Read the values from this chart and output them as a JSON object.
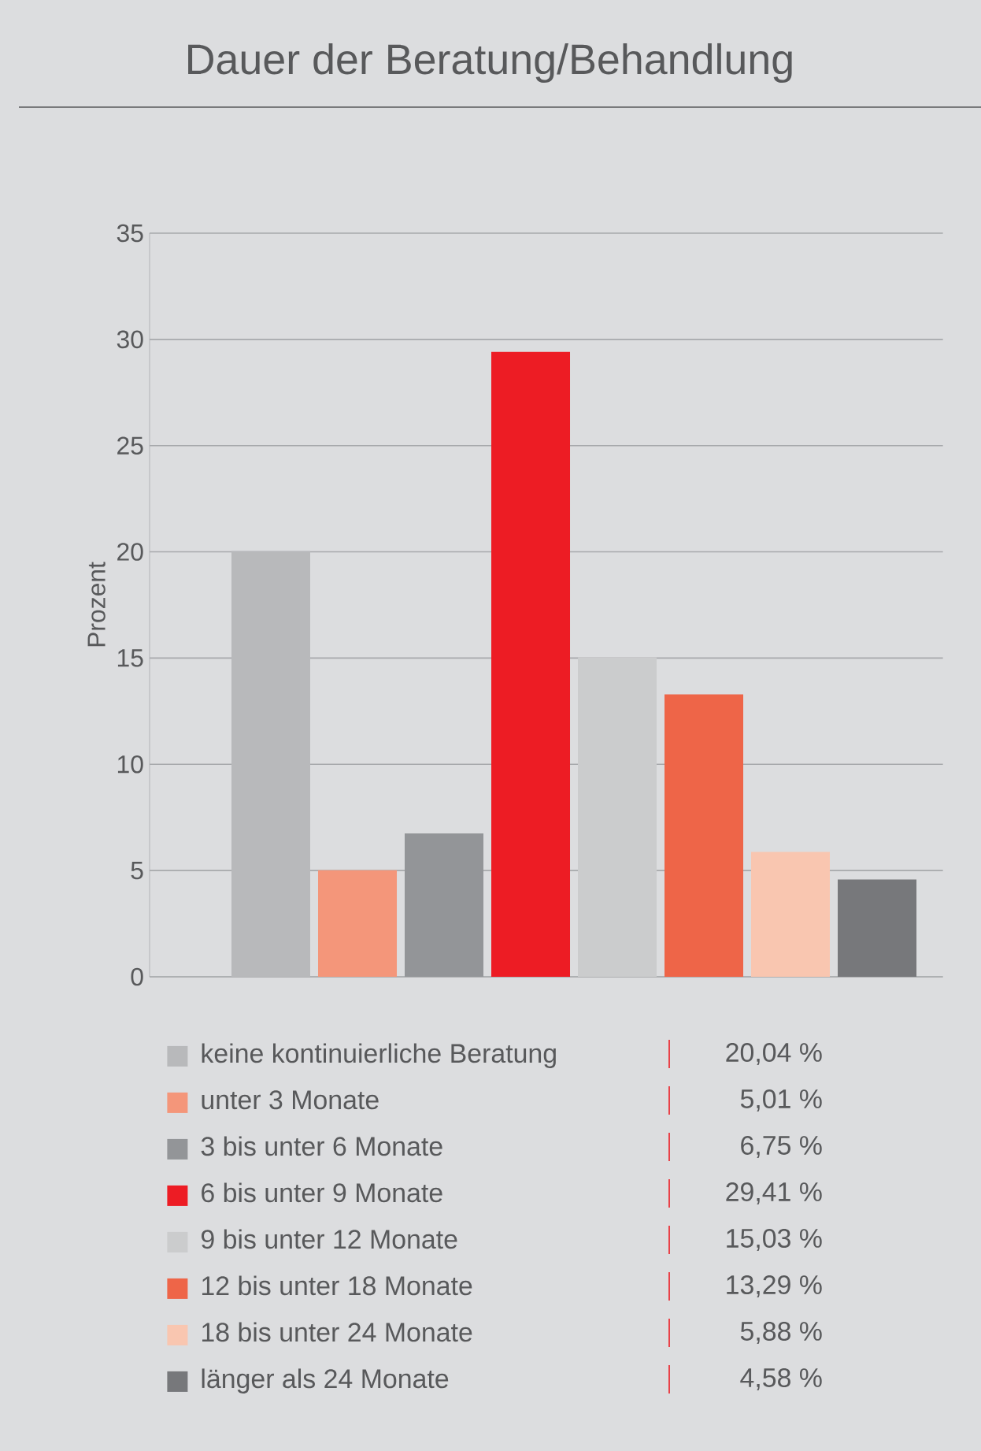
{
  "chart_data": {
    "type": "bar",
    "title": "Dauer der Beratung/Behandlung",
    "ylabel": "Prozent",
    "categories": [
      null
    ],
    "series": [
      {
        "name": "keine kontinuierliche Beratung",
        "color": "#b8b9bb",
        "values": [
          20.04
        ]
      },
      {
        "name": "unter 3 Monate",
        "color": "#f4967a",
        "values": [
          5.01
        ]
      },
      {
        "name": "3 bis unter 6 Monate",
        "color": "#939598",
        "values": [
          6.75
        ]
      },
      {
        "name": "6 bis unter 9 Monate",
        "color": "#ed1c24",
        "values": [
          29.41
        ]
      },
      {
        "name": "9 bis unter 12 Monate",
        "color": "#cbcccd",
        "values": [
          15.03
        ]
      },
      {
        "name": "12 bis unter 18 Monate",
        "color": "#ee6548",
        "values": [
          13.29
        ]
      },
      {
        "name": "18 bis unter 24 Monate",
        "color": "#f9c6b0",
        "values": [
          5.88
        ]
      },
      {
        "name": "länger als 24 Monate",
        "color": "#77787b",
        "values": [
          4.58
        ]
      }
    ],
    "annotations": [
      "20,04 %",
      "5,01 %",
      "6,75 %",
      "29,41 %",
      "15,03 %",
      "13,29 %",
      "5,88 %",
      "4,58 %"
    ],
    "ylim": [
      0,
      35
    ],
    "yticks": [
      0,
      5,
      10,
      15,
      20,
      25,
      30,
      35
    ],
    "grid": "y",
    "legend": "bottom"
  }
}
